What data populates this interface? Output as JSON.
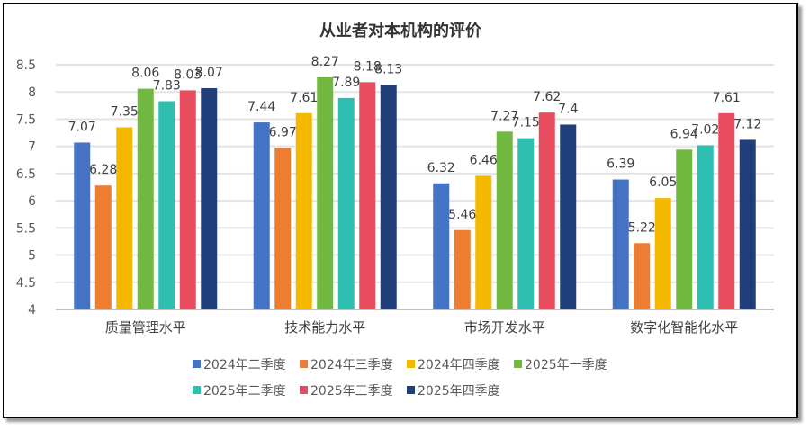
{
  "chart_data": {
    "type": "bar",
    "title": "从业者对本机构的评价",
    "categories": [
      "质量管理水平",
      "技术能力水平",
      "市场开发水平",
      "数字化智能化水平"
    ],
    "ylim": [
      4,
      8.5
    ],
    "yticks": [
      "4",
      "4.5",
      "5",
      "5.5",
      "6",
      "6.5",
      "7",
      "7.5",
      "8",
      "8.5"
    ],
    "grid": true,
    "legend_position": "bottom",
    "series": [
      {
        "name": "2024年二季度",
        "color": "#4472C4",
        "values": [
          7.07,
          7.44,
          6.32,
          6.39
        ]
      },
      {
        "name": "2024年三季度",
        "color": "#ED7D31",
        "values": [
          6.28,
          6.97,
          5.46,
          5.22
        ]
      },
      {
        "name": "2024年四季度",
        "color": "#F5B800",
        "values": [
          7.35,
          7.61,
          6.46,
          6.05
        ]
      },
      {
        "name": "2025年一季度",
        "color": "#70B83F",
        "values": [
          8.06,
          8.27,
          7.27,
          6.94
        ]
      },
      {
        "name": "2025年二季度",
        "color": "#2EBFB0",
        "values": [
          7.83,
          7.89,
          7.15,
          7.02
        ]
      },
      {
        "name": "2025年三季度",
        "color": "#E84C5E",
        "values": [
          8.03,
          8.18,
          7.62,
          7.61
        ]
      },
      {
        "name": "2025年四季度",
        "color": "#203E7A",
        "values": [
          8.07,
          8.13,
          7.4,
          7.12
        ]
      }
    ]
  }
}
